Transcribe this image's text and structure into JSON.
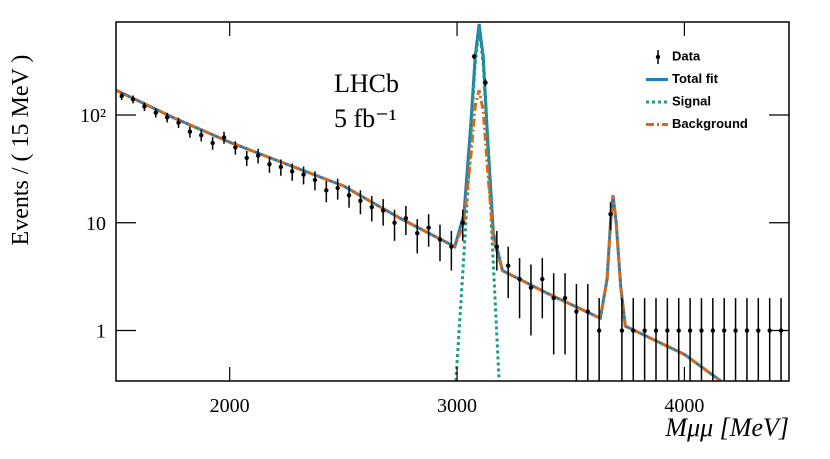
{
  "chart_data": {
    "type": "line",
    "x_label": "Mμμ [MeV]",
    "y_label": "Events / ( 15 MeV )",
    "annotations": [
      "LHCb",
      "5 fb⁻¹"
    ],
    "log_y": true,
    "legend": "upper right",
    "xlim": [
      1500,
      4460
    ],
    "ylim": [
      0.34,
      730
    ],
    "xticks": [
      2000,
      3000,
      4000
    ],
    "yticks": [
      1,
      10,
      {
        "value": 100,
        "label": "10²"
      }
    ],
    "series": [
      {
        "name": "Data",
        "type": "errorbar",
        "color": "#000000",
        "x": [
          1525,
          1575,
          1625,
          1675,
          1725,
          1775,
          1825,
          1875,
          1925,
          1975,
          2025,
          2075,
          2125,
          2175,
          2225,
          2275,
          2325,
          2375,
          2425,
          2475,
          2525,
          2575,
          2625,
          2675,
          2725,
          2775,
          2825,
          2875,
          2925,
          2975,
          3025,
          3075,
          3125,
          3175,
          3225,
          3275,
          3325,
          3375,
          3425,
          3475,
          3525,
          3575,
          3625,
          3675,
          3725,
          3775,
          3825,
          3875,
          3925,
          3975,
          4025,
          4075,
          4125,
          4175,
          4225,
          4275,
          4325,
          4375,
          4425
        ],
        "values": [
          150,
          140,
          120,
          105,
          95,
          85,
          70,
          65,
          55,
          62,
          50,
          40,
          42,
          35,
          33,
          30,
          28,
          25,
          20,
          21,
          18,
          16,
          14,
          13,
          10,
          11,
          8,
          9,
          7,
          6,
          10,
          350,
          200,
          6,
          4,
          3,
          2.5,
          3,
          2,
          2,
          1.5,
          1.5,
          1,
          12,
          1,
          1,
          1,
          1,
          1,
          1,
          1,
          1,
          1,
          1,
          1,
          1,
          1,
          1,
          1
        ],
        "errors": [
          12.2,
          11.8,
          11,
          10.2,
          9.7,
          9.2,
          8.4,
          8.1,
          7.4,
          7.9,
          7.1,
          6.3,
          6.5,
          5.9,
          5.7,
          5.5,
          5.3,
          5,
          4.5,
          4.6,
          4.2,
          4,
          3.7,
          3.6,
          3.2,
          3.3,
          2.8,
          3,
          2.6,
          2.4,
          3.2,
          18.7,
          14.1,
          2.4,
          2,
          1.7,
          1.6,
          1.7,
          1.4,
          1.4,
          1.2,
          1.2,
          1,
          3.5,
          1,
          1,
          1,
          1,
          1,
          1,
          1,
          1,
          1,
          1,
          1,
          1,
          1,
          1,
          1
        ]
      },
      {
        "name": "Total fit",
        "type": "line",
        "linestyle": "solid",
        "color": "#1f7fb4",
        "x": [
          1500,
          1750,
          2000,
          2250,
          2500,
          2750,
          2990,
          3030,
          3060,
          3080,
          3097,
          3115,
          3135,
          3160,
          3200,
          3400,
          3630,
          3660,
          3675,
          3686,
          3700,
          3720,
          3740,
          4000,
          4160
        ],
        "values": [
          170,
          95,
          56,
          35,
          22,
          11,
          6,
          12,
          80,
          350,
          700,
          350,
          60,
          8,
          3.6,
          2.2,
          1.3,
          3,
          10,
          18,
          10,
          2.5,
          1.1,
          0.6,
          0.34
        ]
      },
      {
        "name": "Signal",
        "type": "line",
        "linestyle": "dotted",
        "color": "#1a9c86",
        "x": [
          2995,
          3030,
          3060,
          3080,
          3097,
          3115,
          3135,
          3160,
          3185
        ],
        "values": [
          0.34,
          5,
          60,
          300,
          650,
          300,
          50,
          4,
          0.34
        ]
      },
      {
        "name": "Background",
        "type": "line",
        "linestyle": "dashdot",
        "color": "#d2691e",
        "x": [
          1500,
          1750,
          2000,
          2250,
          2500,
          2750,
          2990,
          3030,
          3060,
          3080,
          3097,
          3115,
          3135,
          3160,
          3200,
          3400,
          3630,
          3660,
          3675,
          3686,
          3700,
          3720,
          3740,
          4000,
          4160
        ],
        "values": [
          170,
          95,
          56,
          35,
          22,
          11,
          6,
          10,
          40,
          120,
          170,
          110,
          30,
          7,
          3.6,
          2.2,
          1.3,
          3,
          10,
          18,
          10,
          2.5,
          1.1,
          0.6,
          0.34
        ]
      }
    ]
  }
}
